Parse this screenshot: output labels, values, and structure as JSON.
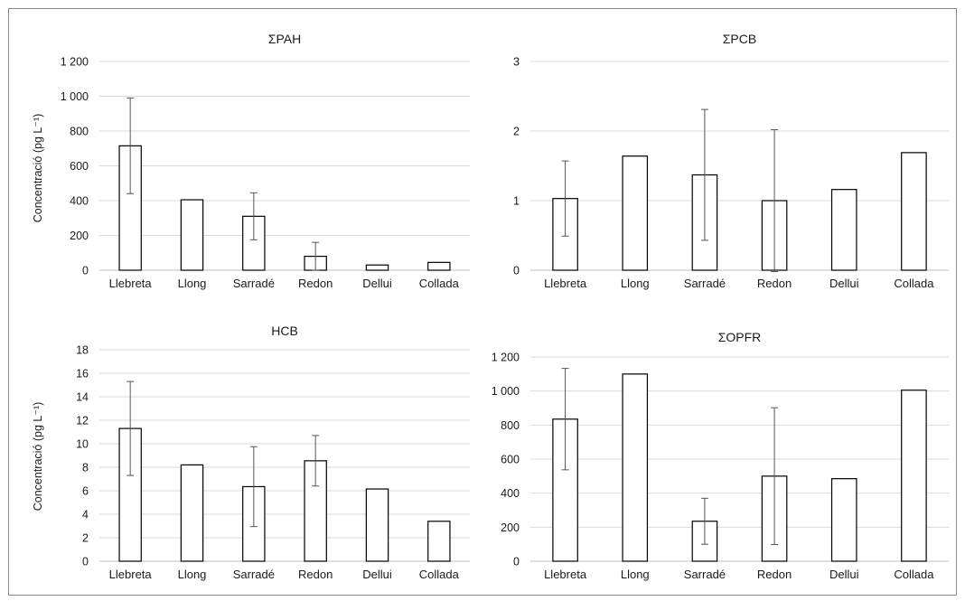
{
  "chart_data": [
    {
      "type": "bar",
      "title": "ΣPAH",
      "ylabel": "Concentració (pg L⁻¹)",
      "ylim": [
        0,
        1200
      ],
      "yticks": [
        0,
        200,
        400,
        600,
        800,
        1000,
        1200
      ],
      "ytick_labels": [
        "0",
        "200",
        "400",
        "600",
        "800",
        "1 000",
        "1 200"
      ],
      "categories": [
        "Llebreta",
        "Llong",
        "Sarradé",
        "Redon",
        "Dellui",
        "Collada"
      ],
      "values": [
        715,
        405,
        310,
        80,
        30,
        45
      ],
      "errors": [
        275,
        null,
        135,
        80,
        null,
        null
      ],
      "grid": true
    },
    {
      "type": "bar",
      "title": "ΣPCB",
      "ylabel": "",
      "ylim": [
        0,
        3
      ],
      "yticks": [
        0,
        1,
        2,
        3
      ],
      "ytick_labels": [
        "0",
        "1",
        "2",
        "3"
      ],
      "categories": [
        "Llebreta",
        "Llong",
        "Sarradé",
        "Redon",
        "Dellui",
        "Collada"
      ],
      "values": [
        1.03,
        1.64,
        1.37,
        1.0,
        1.16,
        1.69
      ],
      "errors": [
        0.54,
        null,
        0.94,
        1.02,
        null,
        null
      ],
      "grid": true
    },
    {
      "type": "bar",
      "title": "HCB",
      "ylabel": "Concentració (pg L⁻¹)",
      "ylim": [
        0,
        18
      ],
      "yticks": [
        0,
        2,
        4,
        6,
        8,
        10,
        12,
        14,
        16,
        18
      ],
      "ytick_labels": [
        "0",
        "2",
        "4",
        "6",
        "8",
        "10",
        "12",
        "14",
        "16",
        "18"
      ],
      "categories": [
        "Llebreta",
        "Llong",
        "Sarradé",
        "Redon",
        "Dellui",
        "Collada"
      ],
      "values": [
        11.3,
        8.2,
        6.35,
        8.55,
        6.15,
        3.4
      ],
      "errors": [
        4.0,
        null,
        3.4,
        2.15,
        null,
        null
      ],
      "grid": true
    },
    {
      "type": "bar",
      "title": "ΣOPFR",
      "ylabel": "",
      "ylim": [
        0,
        1200
      ],
      "yticks": [
        0,
        200,
        400,
        600,
        800,
        1000,
        1200
      ],
      "ytick_labels": [
        "0",
        "200",
        "400",
        "600",
        "800",
        "1 000",
        "1 200"
      ],
      "categories": [
        "Llebreta",
        "Llong",
        "Sarradé",
        "Redon",
        "Dellui",
        "Collada"
      ],
      "values": [
        835,
        1100,
        235,
        500,
        485,
        1005
      ],
      "errors": [
        298,
        null,
        135,
        402,
        null,
        null
      ],
      "grid": true
    }
  ]
}
